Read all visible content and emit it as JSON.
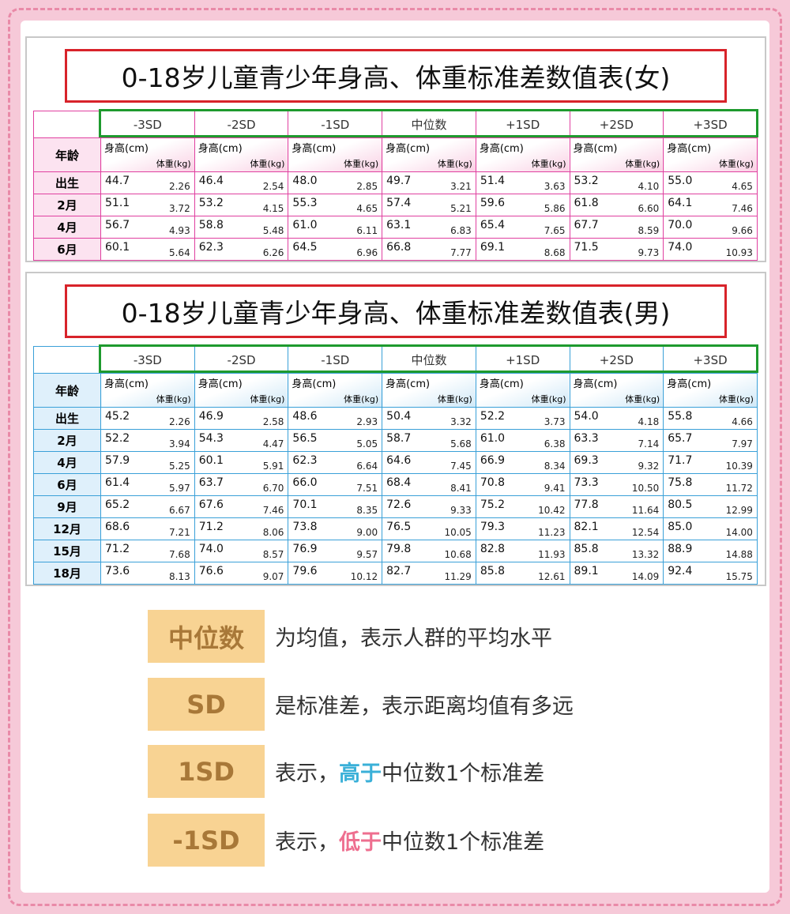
{
  "tables": [
    {
      "title": "0-18岁儿童青少年身高、体重标准差数值表(女)",
      "corner": "年龄",
      "height_label": "身高(cm)",
      "weight_label": "体重(kg)",
      "columns": [
        "-3SD",
        "-2SD",
        "-1SD",
        "中位数",
        "+1SD",
        "+2SD",
        "+3SD"
      ],
      "rows": [
        {
          "age": "出生",
          "cells": [
            [
              "44.7",
              "2.26"
            ],
            [
              "46.4",
              "2.54"
            ],
            [
              "48.0",
              "2.85"
            ],
            [
              "49.7",
              "3.21"
            ],
            [
              "51.4",
              "3.63"
            ],
            [
              "53.2",
              "4.10"
            ],
            [
              "55.0",
              "4.65"
            ]
          ]
        },
        {
          "age": "2月",
          "cells": [
            [
              "51.1",
              "3.72"
            ],
            [
              "53.2",
              "4.15"
            ],
            [
              "55.3",
              "4.65"
            ],
            [
              "57.4",
              "5.21"
            ],
            [
              "59.6",
              "5.86"
            ],
            [
              "61.8",
              "6.60"
            ],
            [
              "64.1",
              "7.46"
            ]
          ]
        },
        {
          "age": "4月",
          "cells": [
            [
              "56.7",
              "4.93"
            ],
            [
              "58.8",
              "5.48"
            ],
            [
              "61.0",
              "6.11"
            ],
            [
              "63.1",
              "6.83"
            ],
            [
              "65.4",
              "7.65"
            ],
            [
              "67.7",
              "8.59"
            ],
            [
              "70.0",
              "9.66"
            ]
          ]
        },
        {
          "age": "6月",
          "cells": [
            [
              "60.1",
              "5.64"
            ],
            [
              "62.3",
              "6.26"
            ],
            [
              "64.5",
              "6.96"
            ],
            [
              "66.8",
              "7.77"
            ],
            [
              "69.1",
              "8.68"
            ],
            [
              "71.5",
              "9.73"
            ],
            [
              "74.0",
              "10.93"
            ]
          ]
        }
      ]
    },
    {
      "title": "0-18岁儿童青少年身高、体重标准差数值表(男)",
      "corner": "年龄",
      "height_label": "身高(cm)",
      "weight_label": "体重(kg)",
      "columns": [
        "-3SD",
        "-2SD",
        "-1SD",
        "中位数",
        "+1SD",
        "+2SD",
        "+3SD"
      ],
      "rows": [
        {
          "age": "出生",
          "cells": [
            [
              "45.2",
              "2.26"
            ],
            [
              "46.9",
              "2.58"
            ],
            [
              "48.6",
              "2.93"
            ],
            [
              "50.4",
              "3.32"
            ],
            [
              "52.2",
              "3.73"
            ],
            [
              "54.0",
              "4.18"
            ],
            [
              "55.8",
              "4.66"
            ]
          ]
        },
        {
          "age": "2月",
          "cells": [
            [
              "52.2",
              "3.94"
            ],
            [
              "54.3",
              "4.47"
            ],
            [
              "56.5",
              "5.05"
            ],
            [
              "58.7",
              "5.68"
            ],
            [
              "61.0",
              "6.38"
            ],
            [
              "63.3",
              "7.14"
            ],
            [
              "65.7",
              "7.97"
            ]
          ]
        },
        {
          "age": "4月",
          "cells": [
            [
              "57.9",
              "5.25"
            ],
            [
              "60.1",
              "5.91"
            ],
            [
              "62.3",
              "6.64"
            ],
            [
              "64.6",
              "7.45"
            ],
            [
              "66.9",
              "8.34"
            ],
            [
              "69.3",
              "9.32"
            ],
            [
              "71.7",
              "10.39"
            ]
          ]
        },
        {
          "age": "6月",
          "cells": [
            [
              "61.4",
              "5.97"
            ],
            [
              "63.7",
              "6.70"
            ],
            [
              "66.0",
              "7.51"
            ],
            [
              "68.4",
              "8.41"
            ],
            [
              "70.8",
              "9.41"
            ],
            [
              "73.3",
              "10.50"
            ],
            [
              "75.8",
              "11.72"
            ]
          ]
        },
        {
          "age": "9月",
          "cells": [
            [
              "65.2",
              "6.67"
            ],
            [
              "67.6",
              "7.46"
            ],
            [
              "70.1",
              "8.35"
            ],
            [
              "72.6",
              "9.33"
            ],
            [
              "75.2",
              "10.42"
            ],
            [
              "77.8",
              "11.64"
            ],
            [
              "80.5",
              "12.99"
            ]
          ]
        },
        {
          "age": "12月",
          "cells": [
            [
              "68.6",
              "7.21"
            ],
            [
              "71.2",
              "8.06"
            ],
            [
              "73.8",
              "9.00"
            ],
            [
              "76.5",
              "10.05"
            ],
            [
              "79.3",
              "11.23"
            ],
            [
              "82.1",
              "12.54"
            ],
            [
              "85.0",
              "14.00"
            ]
          ]
        },
        {
          "age": "15月",
          "cells": [
            [
              "71.2",
              "7.68"
            ],
            [
              "74.0",
              "8.57"
            ],
            [
              "76.9",
              "9.57"
            ],
            [
              "79.8",
              "10.68"
            ],
            [
              "82.8",
              "11.93"
            ],
            [
              "85.8",
              "13.32"
            ],
            [
              "88.9",
              "14.88"
            ]
          ]
        },
        {
          "age": "18月",
          "cells": [
            [
              "73.6",
              "8.13"
            ],
            [
              "76.6",
              "9.07"
            ],
            [
              "79.6",
              "10.12"
            ],
            [
              "82.7",
              "11.29"
            ],
            [
              "85.8",
              "12.61"
            ],
            [
              "89.1",
              "14.09"
            ],
            [
              "92.4",
              "15.75"
            ]
          ]
        }
      ]
    }
  ],
  "legend": [
    {
      "term": "中位数",
      "desc": {
        "prefix": "为均值，表示人群的平均水平"
      }
    },
    {
      "term": "SD",
      "desc": {
        "prefix": "是标准差，表示距离均值有多远"
      }
    },
    {
      "term": "1SD",
      "desc": {
        "prefix": "表示，",
        "highlight": "高于",
        "suffix": "中位数1个标准差"
      }
    },
    {
      "term": "-1SD",
      "desc": {
        "prefix": "表示，",
        "highlight": "低于",
        "suffix": "中位数1个标准差"
      }
    }
  ]
}
